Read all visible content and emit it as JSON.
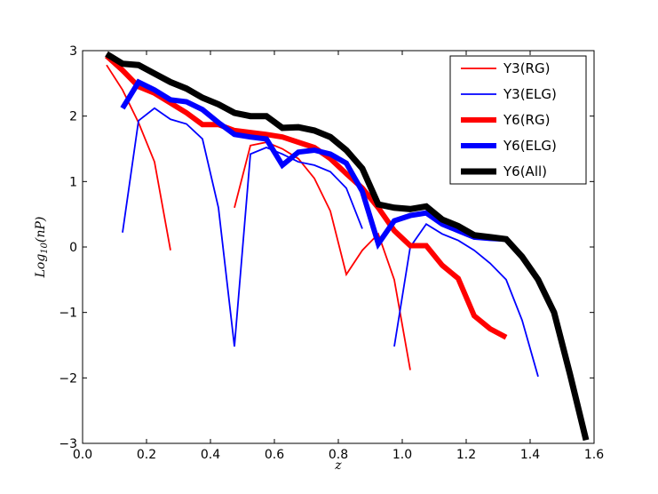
{
  "chart_data": {
    "type": "line",
    "title": "",
    "xlabel": "z",
    "ylabel_main": "Log",
    "ylabel_sub": "10",
    "ylabel_tail": "(nP)",
    "xlim": [
      0.0,
      1.6
    ],
    "ylim": [
      -3,
      3
    ],
    "xticks": [
      0.0,
      0.2,
      0.4,
      0.6,
      0.8,
      1.0,
      1.2,
      1.4,
      1.6
    ],
    "xtick_labels": [
      "0.0",
      "0.2",
      "0.4",
      "0.6",
      "0.8",
      "1.0",
      "1.2",
      "1.4",
      "1.6"
    ],
    "yticks": [
      -3,
      -2,
      -1,
      0,
      1,
      2,
      3
    ],
    "ytick_labels": [
      "−3",
      "−2",
      "−1",
      "0",
      "1",
      "2",
      "3"
    ],
    "grid": false,
    "legend_position": "top-right",
    "series": [
      {
        "name": "Y3(RG)",
        "color": "#ff0000",
        "width": "thin",
        "segments": [
          [
            [
              0.075,
              2.78
            ],
            [
              0.125,
              2.4
            ],
            [
              0.175,
              1.9
            ],
            [
              0.225,
              1.3
            ],
            [
              0.275,
              -0.05
            ]
          ],
          [
            [
              0.475,
              0.6
            ],
            [
              0.525,
              1.55
            ],
            [
              0.575,
              1.6
            ],
            [
              0.625,
              1.5
            ],
            [
              0.675,
              1.35
            ],
            [
              0.725,
              1.05
            ],
            [
              0.775,
              0.55
            ],
            [
              0.825,
              -0.42
            ],
            [
              0.875,
              -0.05
            ],
            [
              0.925,
              0.2
            ],
            [
              0.975,
              -0.5
            ],
            [
              1.025,
              -1.88
            ]
          ]
        ]
      },
      {
        "name": "Y3(ELG)",
        "color": "#0000ff",
        "width": "thin",
        "segments": [
          [
            [
              0.125,
              0.22
            ],
            [
              0.175,
              1.93
            ],
            [
              0.225,
              2.12
            ],
            [
              0.275,
              1.95
            ],
            [
              0.325,
              1.88
            ],
            [
              0.375,
              1.65
            ],
            [
              0.425,
              0.6
            ],
            [
              0.475,
              -1.52
            ],
            [
              0.525,
              1.42
            ],
            [
              0.575,
              1.52
            ],
            [
              0.625,
              1.42
            ],
            [
              0.675,
              1.3
            ],
            [
              0.725,
              1.25
            ],
            [
              0.775,
              1.15
            ],
            [
              0.825,
              0.9
            ],
            [
              0.875,
              0.28
            ]
          ],
          [
            [
              0.975,
              -1.52
            ],
            [
              1.025,
              0.0
            ],
            [
              1.075,
              0.35
            ],
            [
              1.125,
              0.2
            ],
            [
              1.175,
              0.1
            ],
            [
              1.225,
              -0.05
            ],
            [
              1.275,
              -0.25
            ],
            [
              1.325,
              -0.5
            ],
            [
              1.375,
              -1.12
            ],
            [
              1.425,
              -1.98
            ]
          ]
        ]
      },
      {
        "name": "Y6(RG)",
        "color": "#ff0000",
        "width": "medium",
        "segments": [
          [
            [
              0.075,
              2.92
            ],
            [
              0.125,
              2.7
            ],
            [
              0.175,
              2.45
            ],
            [
              0.225,
              2.35
            ],
            [
              0.275,
              2.2
            ],
            [
              0.325,
              2.05
            ],
            [
              0.375,
              1.87
            ],
            [
              0.425,
              1.87
            ],
            [
              0.475,
              1.78
            ],
            [
              0.525,
              1.75
            ],
            [
              0.575,
              1.72
            ],
            [
              0.625,
              1.68
            ],
            [
              0.675,
              1.6
            ],
            [
              0.725,
              1.52
            ],
            [
              0.775,
              1.35
            ],
            [
              0.825,
              1.12
            ],
            [
              0.875,
              0.9
            ],
            [
              0.925,
              0.6
            ],
            [
              0.975,
              0.25
            ],
            [
              1.025,
              0.02
            ],
            [
              1.075,
              0.02
            ],
            [
              1.125,
              -0.28
            ],
            [
              1.175,
              -0.48
            ],
            [
              1.225,
              -1.05
            ],
            [
              1.275,
              -1.25
            ],
            [
              1.325,
              -1.38
            ]
          ]
        ]
      },
      {
        "name": "Y6(ELG)",
        "color": "#0000ff",
        "width": "medium",
        "segments": [
          [
            [
              0.125,
              2.12
            ],
            [
              0.175,
              2.52
            ],
            [
              0.225,
              2.4
            ],
            [
              0.275,
              2.25
            ],
            [
              0.325,
              2.22
            ],
            [
              0.375,
              2.1
            ],
            [
              0.425,
              1.9
            ],
            [
              0.475,
              1.72
            ],
            [
              0.525,
              1.68
            ],
            [
              0.575,
              1.65
            ],
            [
              0.625,
              1.25
            ],
            [
              0.675,
              1.45
            ],
            [
              0.725,
              1.48
            ],
            [
              0.775,
              1.42
            ],
            [
              0.825,
              1.28
            ],
            [
              0.875,
              0.85
            ],
            [
              0.925,
              0.05
            ],
            [
              0.975,
              0.4
            ],
            [
              1.025,
              0.48
            ],
            [
              1.075,
              0.52
            ],
            [
              1.125,
              0.35
            ],
            [
              1.175,
              0.25
            ],
            [
              1.225,
              0.15
            ],
            [
              1.275,
              0.13
            ],
            [
              1.325,
              0.12
            ]
          ]
        ]
      },
      {
        "name": "Y6(All)",
        "color": "#000000",
        "width": "thick",
        "segments": [
          [
            [
              0.075,
              2.95
            ],
            [
              0.125,
              2.8
            ],
            [
              0.175,
              2.78
            ],
            [
              0.225,
              2.65
            ],
            [
              0.275,
              2.52
            ],
            [
              0.325,
              2.42
            ],
            [
              0.375,
              2.28
            ],
            [
              0.425,
              2.18
            ],
            [
              0.475,
              2.05
            ],
            [
              0.525,
              2.0
            ],
            [
              0.575,
              2.0
            ],
            [
              0.625,
              1.82
            ],
            [
              0.675,
              1.83
            ],
            [
              0.725,
              1.78
            ],
            [
              0.775,
              1.68
            ],
            [
              0.825,
              1.48
            ],
            [
              0.875,
              1.2
            ],
            [
              0.925,
              0.65
            ],
            [
              0.975,
              0.6
            ],
            [
              1.025,
              0.58
            ],
            [
              1.075,
              0.62
            ],
            [
              1.125,
              0.42
            ],
            [
              1.175,
              0.32
            ],
            [
              1.225,
              0.18
            ],
            [
              1.275,
              0.15
            ],
            [
              1.325,
              0.12
            ],
            [
              1.375,
              -0.15
            ],
            [
              1.425,
              -0.5
            ],
            [
              1.475,
              -1.0
            ],
            [
              1.525,
              -1.95
            ],
            [
              1.575,
              -2.95
            ]
          ]
        ]
      }
    ]
  }
}
